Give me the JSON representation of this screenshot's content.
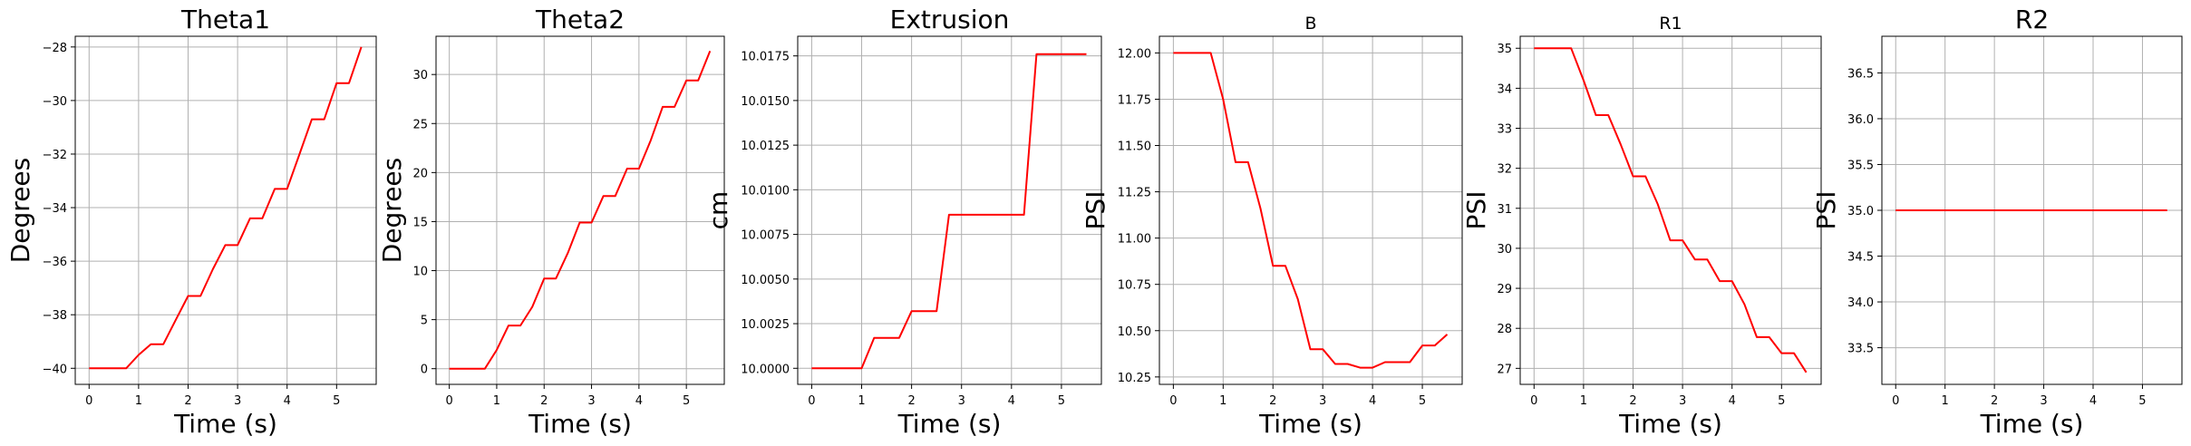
{
  "chart_data": [
    {
      "type": "line",
      "title": "Theta1",
      "title_size": "large",
      "xlabel": "Time (s)",
      "ylabel": "Degrees",
      "xlim": [
        -0.28,
        5.8
      ],
      "ylim": [
        -40.6,
        -27.6
      ],
      "xticks": [
        0,
        1,
        2,
        3,
        4,
        5
      ],
      "yticks": [
        -40,
        -38,
        -36,
        -34,
        -32,
        -30,
        -28
      ],
      "ytick_labels": [
        "−40",
        "−38",
        "−36",
        "−34",
        "−32",
        "−30",
        "−28"
      ],
      "grid": true,
      "series": [
        {
          "color": "#ff0000",
          "x": [
            0,
            0.25,
            0.5,
            0.75,
            1.0,
            1.25,
            1.5,
            1.75,
            2.0,
            2.25,
            2.5,
            2.75,
            3.0,
            3.25,
            3.5,
            3.75,
            4.0,
            4.25,
            4.5,
            4.75,
            5.0,
            5.25,
            5.5
          ],
          "y": [
            -40,
            -40,
            -40,
            -40,
            -39.5,
            -39.1,
            -39.1,
            -38.2,
            -37.3,
            -37.3,
            -36.3,
            -35.4,
            -35.4,
            -34.4,
            -34.4,
            -33.3,
            -33.3,
            -32.0,
            -30.7,
            -30.7,
            -29.35,
            -29.35,
            -28.0
          ]
        }
      ]
    },
    {
      "type": "line",
      "title": "Theta2",
      "title_size": "large",
      "xlabel": "Time (s)",
      "ylabel": "Degrees",
      "xlim": [
        -0.28,
        5.8
      ],
      "ylim": [
        -1.6,
        33.9
      ],
      "xticks": [
        0,
        1,
        2,
        3,
        4,
        5
      ],
      "yticks": [
        0,
        5,
        10,
        15,
        20,
        25,
        30
      ],
      "ytick_labels": [
        "0",
        "5",
        "10",
        "15",
        "20",
        "25",
        "30"
      ],
      "grid": true,
      "series": [
        {
          "color": "#ff0000",
          "x": [
            0,
            0.25,
            0.5,
            0.75,
            1.0,
            1.25,
            1.5,
            1.75,
            2.0,
            2.25,
            2.5,
            2.75,
            3.0,
            3.25,
            3.5,
            3.75,
            4.0,
            4.25,
            4.5,
            4.75,
            5.0,
            5.25,
            5.5
          ],
          "y": [
            0,
            0,
            0,
            0,
            1.9,
            4.4,
            4.4,
            6.3,
            9.2,
            9.2,
            11.8,
            14.9,
            14.9,
            17.6,
            17.6,
            20.4,
            20.4,
            23.3,
            26.7,
            26.7,
            29.4,
            29.4,
            32.4
          ]
        }
      ]
    },
    {
      "type": "line",
      "title": "Extrusion",
      "title_size": "large",
      "xlabel": "Time (s)",
      "ylabel": "cm",
      "xlim": [
        -0.28,
        5.8
      ],
      "ylim": [
        9.9991,
        10.0186
      ],
      "xticks": [
        0,
        1,
        2,
        3,
        4,
        5
      ],
      "yticks": [
        10.0,
        10.0025,
        10.005,
        10.0075,
        10.01,
        10.0125,
        10.015,
        10.0175
      ],
      "ytick_labels": [
        "10.0000",
        "10.0025",
        "10.0050",
        "10.0075",
        "10.0100",
        "10.0125",
        "10.0150",
        "10.0175"
      ],
      "grid": true,
      "series": [
        {
          "color": "#ff0000",
          "x": [
            0,
            1.0,
            1.25,
            1.75,
            2.0,
            2.5,
            2.75,
            4.25,
            4.5,
            5.5
          ],
          "y": [
            10.0,
            10.0,
            10.0017,
            10.0017,
            10.0032,
            10.0032,
            10.0086,
            10.0086,
            10.0176,
            10.0176
          ]
        }
      ]
    },
    {
      "type": "line",
      "title": "B",
      "title_size": "small",
      "xlabel": "Time (s)",
      "ylabel": "PSI",
      "xlim": [
        -0.28,
        5.8
      ],
      "ylim": [
        10.21,
        12.09
      ],
      "xticks": [
        0,
        1,
        2,
        3,
        4,
        5
      ],
      "yticks": [
        10.25,
        10.5,
        10.75,
        11.0,
        11.25,
        11.5,
        11.75,
        12.0
      ],
      "ytick_labels": [
        "10.25",
        "10.50",
        "10.75",
        "11.00",
        "11.25",
        "11.50",
        "11.75",
        "12.00"
      ],
      "grid": true,
      "series": [
        {
          "color": "#ff0000",
          "x": [
            0,
            0.25,
            0.5,
            0.75,
            1.0,
            1.25,
            1.5,
            1.75,
            2.0,
            2.25,
            2.5,
            2.75,
            3.0,
            3.25,
            3.5,
            3.75,
            4.0,
            4.25,
            4.5,
            4.75,
            5.0,
            5.25,
            5.5
          ],
          "y": [
            12.0,
            12.0,
            12.0,
            12.0,
            11.75,
            11.41,
            11.41,
            11.16,
            10.85,
            10.85,
            10.67,
            10.4,
            10.4,
            10.32,
            10.32,
            10.3,
            10.3,
            10.33,
            10.33,
            10.33,
            10.42,
            10.42,
            10.48
          ]
        }
      ]
    },
    {
      "type": "line",
      "title": "R1",
      "title_size": "small",
      "xlabel": "Time (s)",
      "ylabel": "PSI",
      "xlim": [
        -0.28,
        5.8
      ],
      "ylim": [
        26.6,
        35.3
      ],
      "xticks": [
        0,
        1,
        2,
        3,
        4,
        5
      ],
      "yticks": [
        27,
        28,
        29,
        30,
        31,
        32,
        33,
        34,
        35
      ],
      "ytick_labels": [
        "27",
        "28",
        "29",
        "30",
        "31",
        "32",
        "33",
        "34",
        "35"
      ],
      "grid": true,
      "series": [
        {
          "color": "#ff0000",
          "x": [
            0,
            0.25,
            0.5,
            0.75,
            1.0,
            1.25,
            1.5,
            1.75,
            2.0,
            2.25,
            2.5,
            2.75,
            3.0,
            3.25,
            3.5,
            3.75,
            4.0,
            4.25,
            4.5,
            4.75,
            5.0,
            5.25,
            5.5
          ],
          "y": [
            35,
            35,
            35,
            35,
            34.2,
            33.33,
            33.33,
            32.6,
            31.8,
            31.8,
            31.1,
            30.2,
            30.2,
            29.72,
            29.72,
            29.18,
            29.18,
            28.6,
            27.78,
            27.78,
            27.38,
            27.38,
            26.9
          ]
        }
      ]
    },
    {
      "type": "line",
      "title": "R2",
      "title_size": "large",
      "xlabel": "Time (s)",
      "ylabel": "PSI",
      "xlim": [
        -0.28,
        5.8
      ],
      "ylim": [
        33.1,
        36.9
      ],
      "xticks": [
        0,
        1,
        2,
        3,
        4,
        5
      ],
      "yticks": [
        33.5,
        34.0,
        34.5,
        35.0,
        35.5,
        36.0,
        36.5
      ],
      "ytick_labels": [
        "33.5",
        "34.0",
        "34.5",
        "35.0",
        "35.5",
        "36.0",
        "36.5"
      ],
      "grid": true,
      "series": [
        {
          "color": "#ff0000",
          "x": [
            0,
            5.5
          ],
          "y": [
            35.0,
            35.0
          ]
        }
      ]
    }
  ]
}
